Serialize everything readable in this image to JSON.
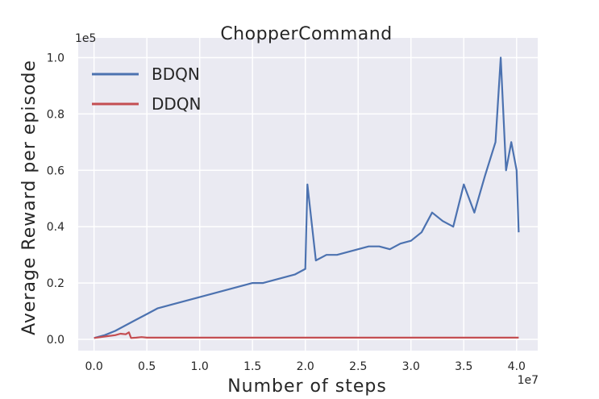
{
  "chart_data": {
    "type": "line",
    "title": "ChopperCommand",
    "xlabel": "Number of steps",
    "ylabel": "Average Reward per episode",
    "x_offset_label": "1e7",
    "y_offset_label": "1e5",
    "xlim": [
      -0.15,
      4.2
    ],
    "ylim": [
      -0.04,
      1.07
    ],
    "x_ticks": [
      0.0,
      0.5,
      1.0,
      1.5,
      2.0,
      2.5,
      3.0,
      3.5,
      4.0
    ],
    "x_tick_labels": [
      "0.0",
      "0.5",
      "1.0",
      "1.5",
      "2.0",
      "2.5",
      "3.0",
      "3.5",
      "4.0"
    ],
    "y_ticks": [
      0.0,
      0.2,
      0.4,
      0.6,
      0.8,
      1.0
    ],
    "y_tick_labels": [
      "0.0",
      "0.2",
      "0.4",
      "0.6",
      "0.8",
      "1.0"
    ],
    "grid": true,
    "legend_position": "top-left",
    "background_color": "#eaeaf2",
    "series": [
      {
        "name": "BDQN",
        "color": "#4c72b0",
        "x": [
          0.0,
          0.1,
          0.2,
          0.3,
          0.4,
          0.5,
          0.6,
          0.7,
          0.8,
          0.9,
          1.0,
          1.1,
          1.2,
          1.3,
          1.4,
          1.5,
          1.6,
          1.7,
          1.8,
          1.9,
          2.0,
          2.02,
          2.1,
          2.2,
          2.3,
          2.4,
          2.5,
          2.6,
          2.7,
          2.8,
          2.9,
          3.0,
          3.1,
          3.2,
          3.3,
          3.4,
          3.5,
          3.6,
          3.7,
          3.8,
          3.85,
          3.9,
          3.95,
          4.0,
          4.02
        ],
        "y": [
          0.005,
          0.015,
          0.03,
          0.05,
          0.07,
          0.09,
          0.11,
          0.12,
          0.13,
          0.14,
          0.15,
          0.16,
          0.17,
          0.18,
          0.19,
          0.2,
          0.2,
          0.21,
          0.22,
          0.23,
          0.25,
          0.55,
          0.28,
          0.3,
          0.3,
          0.31,
          0.32,
          0.33,
          0.33,
          0.32,
          0.34,
          0.35,
          0.38,
          0.45,
          0.42,
          0.4,
          0.55,
          0.45,
          0.58,
          0.7,
          1.0,
          0.6,
          0.7,
          0.6,
          0.38
        ]
      },
      {
        "name": "DDQN",
        "color": "#c44e52",
        "x": [
          0.0,
          0.1,
          0.2,
          0.25,
          0.3,
          0.33,
          0.35,
          0.4,
          0.45,
          0.5,
          1.0,
          2.0,
          3.0,
          4.0,
          4.02
        ],
        "y": [
          0.005,
          0.01,
          0.015,
          0.02,
          0.018,
          0.025,
          0.005,
          0.006,
          0.008,
          0.006,
          0.006,
          0.006,
          0.006,
          0.006,
          0.006
        ]
      }
    ]
  }
}
